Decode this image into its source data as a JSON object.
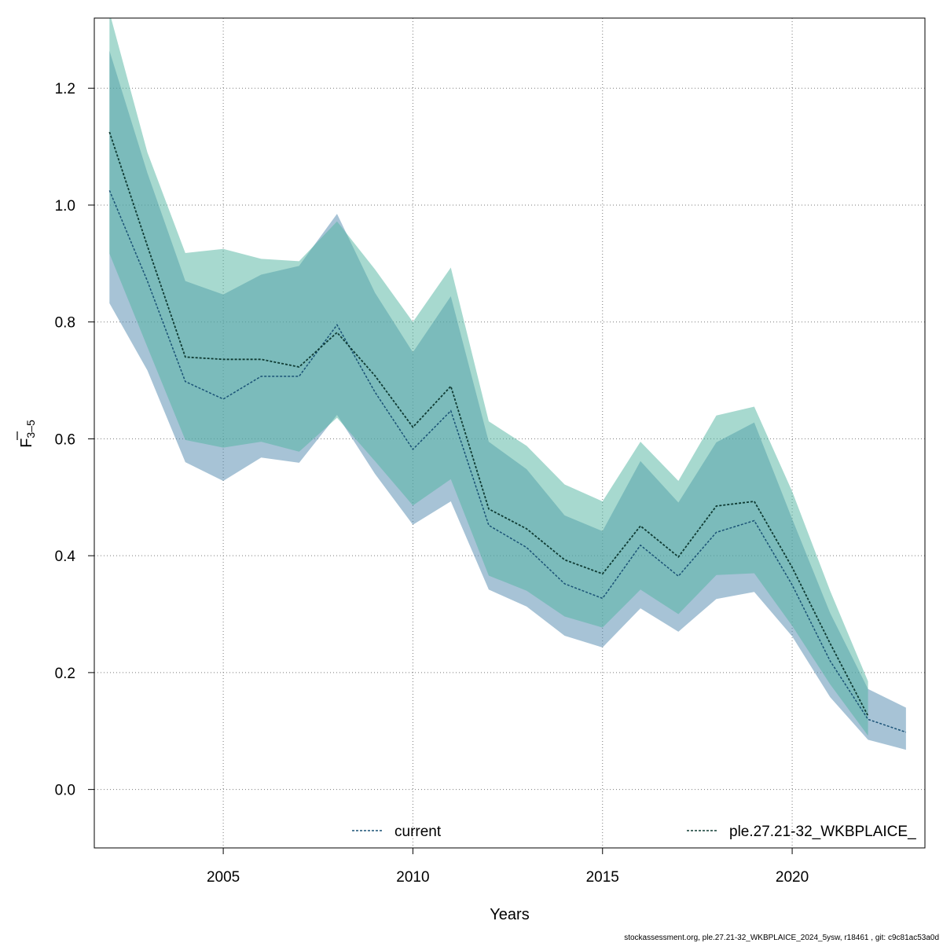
{
  "chart_data": {
    "type": "line",
    "xlabel": "Years",
    "ylabel_main": "F",
    "ylabel_sub": "3–5",
    "xlim": [
      2001.6,
      2023.5
    ],
    "ylim": [
      -0.1,
      1.32
    ],
    "xticks": [
      2005,
      2010,
      2015,
      2020
    ],
    "yticks": [
      0.0,
      0.2,
      0.4,
      0.6,
      0.8,
      1.0,
      1.2
    ],
    "ytick_labels": [
      "0.0",
      "0.2",
      "0.4",
      "0.6",
      "0.8",
      "1.0",
      "1.2"
    ],
    "grid": true,
    "legend_position": "bottom",
    "series": [
      {
        "name": "current",
        "line_color": "#1a5276",
        "band_color": "#4f87ad",
        "x": [
          2002,
          2003,
          2004,
          2005,
          2006,
          2007,
          2008,
          2009,
          2010,
          2011,
          2012,
          2013,
          2014,
          2015,
          2016,
          2017,
          2018,
          2019,
          2020,
          2021,
          2022,
          2023
        ],
        "values": [
          1.025,
          0.87,
          0.698,
          0.668,
          0.707,
          0.707,
          0.795,
          0.68,
          0.582,
          0.648,
          0.452,
          0.414,
          0.352,
          0.327,
          0.418,
          0.365,
          0.44,
          0.46,
          0.35,
          0.22,
          0.12,
          0.098
        ],
        "lower": [
          0.832,
          0.717,
          0.56,
          0.528,
          0.568,
          0.559,
          0.641,
          0.54,
          0.453,
          0.493,
          0.342,
          0.313,
          0.263,
          0.243,
          0.31,
          0.27,
          0.326,
          0.338,
          0.262,
          0.158,
          0.085,
          0.068
        ],
        "upper": [
          1.264,
          1.055,
          0.87,
          0.847,
          0.881,
          0.896,
          0.985,
          0.85,
          0.748,
          0.844,
          0.595,
          0.548,
          0.469,
          0.442,
          0.562,
          0.491,
          0.594,
          0.628,
          0.463,
          0.302,
          0.172,
          0.14
        ]
      },
      {
        "name": "ple.27.21-32_WKBPLAICE_",
        "line_color": "#0f3b33",
        "band_color": "#4fb3a0",
        "x": [
          2002,
          2003,
          2004,
          2005,
          2006,
          2007,
          2008,
          2009,
          2010,
          2011,
          2012,
          2013,
          2014,
          2015,
          2016,
          2017,
          2018,
          2019,
          2020,
          2021,
          2022
        ],
        "values": [
          1.125,
          0.93,
          0.74,
          0.736,
          0.736,
          0.723,
          0.782,
          0.708,
          0.62,
          0.69,
          0.48,
          0.446,
          0.393,
          0.369,
          0.451,
          0.398,
          0.485,
          0.493,
          0.38,
          0.25,
          0.126
        ],
        "lower": [
          0.917,
          0.757,
          0.598,
          0.585,
          0.595,
          0.578,
          0.636,
          0.562,
          0.486,
          0.531,
          0.366,
          0.34,
          0.296,
          0.277,
          0.342,
          0.3,
          0.367,
          0.37,
          0.28,
          0.18,
          0.092
        ],
        "upper": [
          1.33,
          1.09,
          0.918,
          0.925,
          0.908,
          0.904,
          0.972,
          0.89,
          0.8,
          0.893,
          0.63,
          0.588,
          0.522,
          0.493,
          0.595,
          0.528,
          0.64,
          0.655,
          0.51,
          0.34,
          0.185
        ]
      }
    ]
  },
  "footer": {
    "text": "stockassessment.org, ple.27.21-32_WKBPLAICE_2024_5ysw, r18461 , git: c9c81ac53a0d"
  }
}
